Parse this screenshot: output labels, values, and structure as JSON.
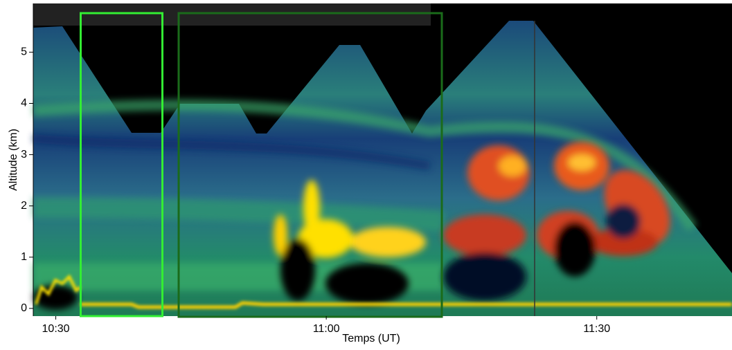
{
  "chart_data": {
    "type": "heatmap",
    "xlabel": "Temps (UT)",
    "ylabel": "Altitude (km)",
    "xlim": [
      627.5,
      705
    ],
    "xticks": [
      {
        "value": 630,
        "label": "10:30"
      },
      {
        "value": 660,
        "label": "11:00"
      },
      {
        "value": 690,
        "label": "11:30"
      }
    ],
    "ylim": [
      -0.15,
      5.95
    ],
    "yticks": [
      0,
      1,
      2,
      3,
      4,
      5
    ]
  }
}
